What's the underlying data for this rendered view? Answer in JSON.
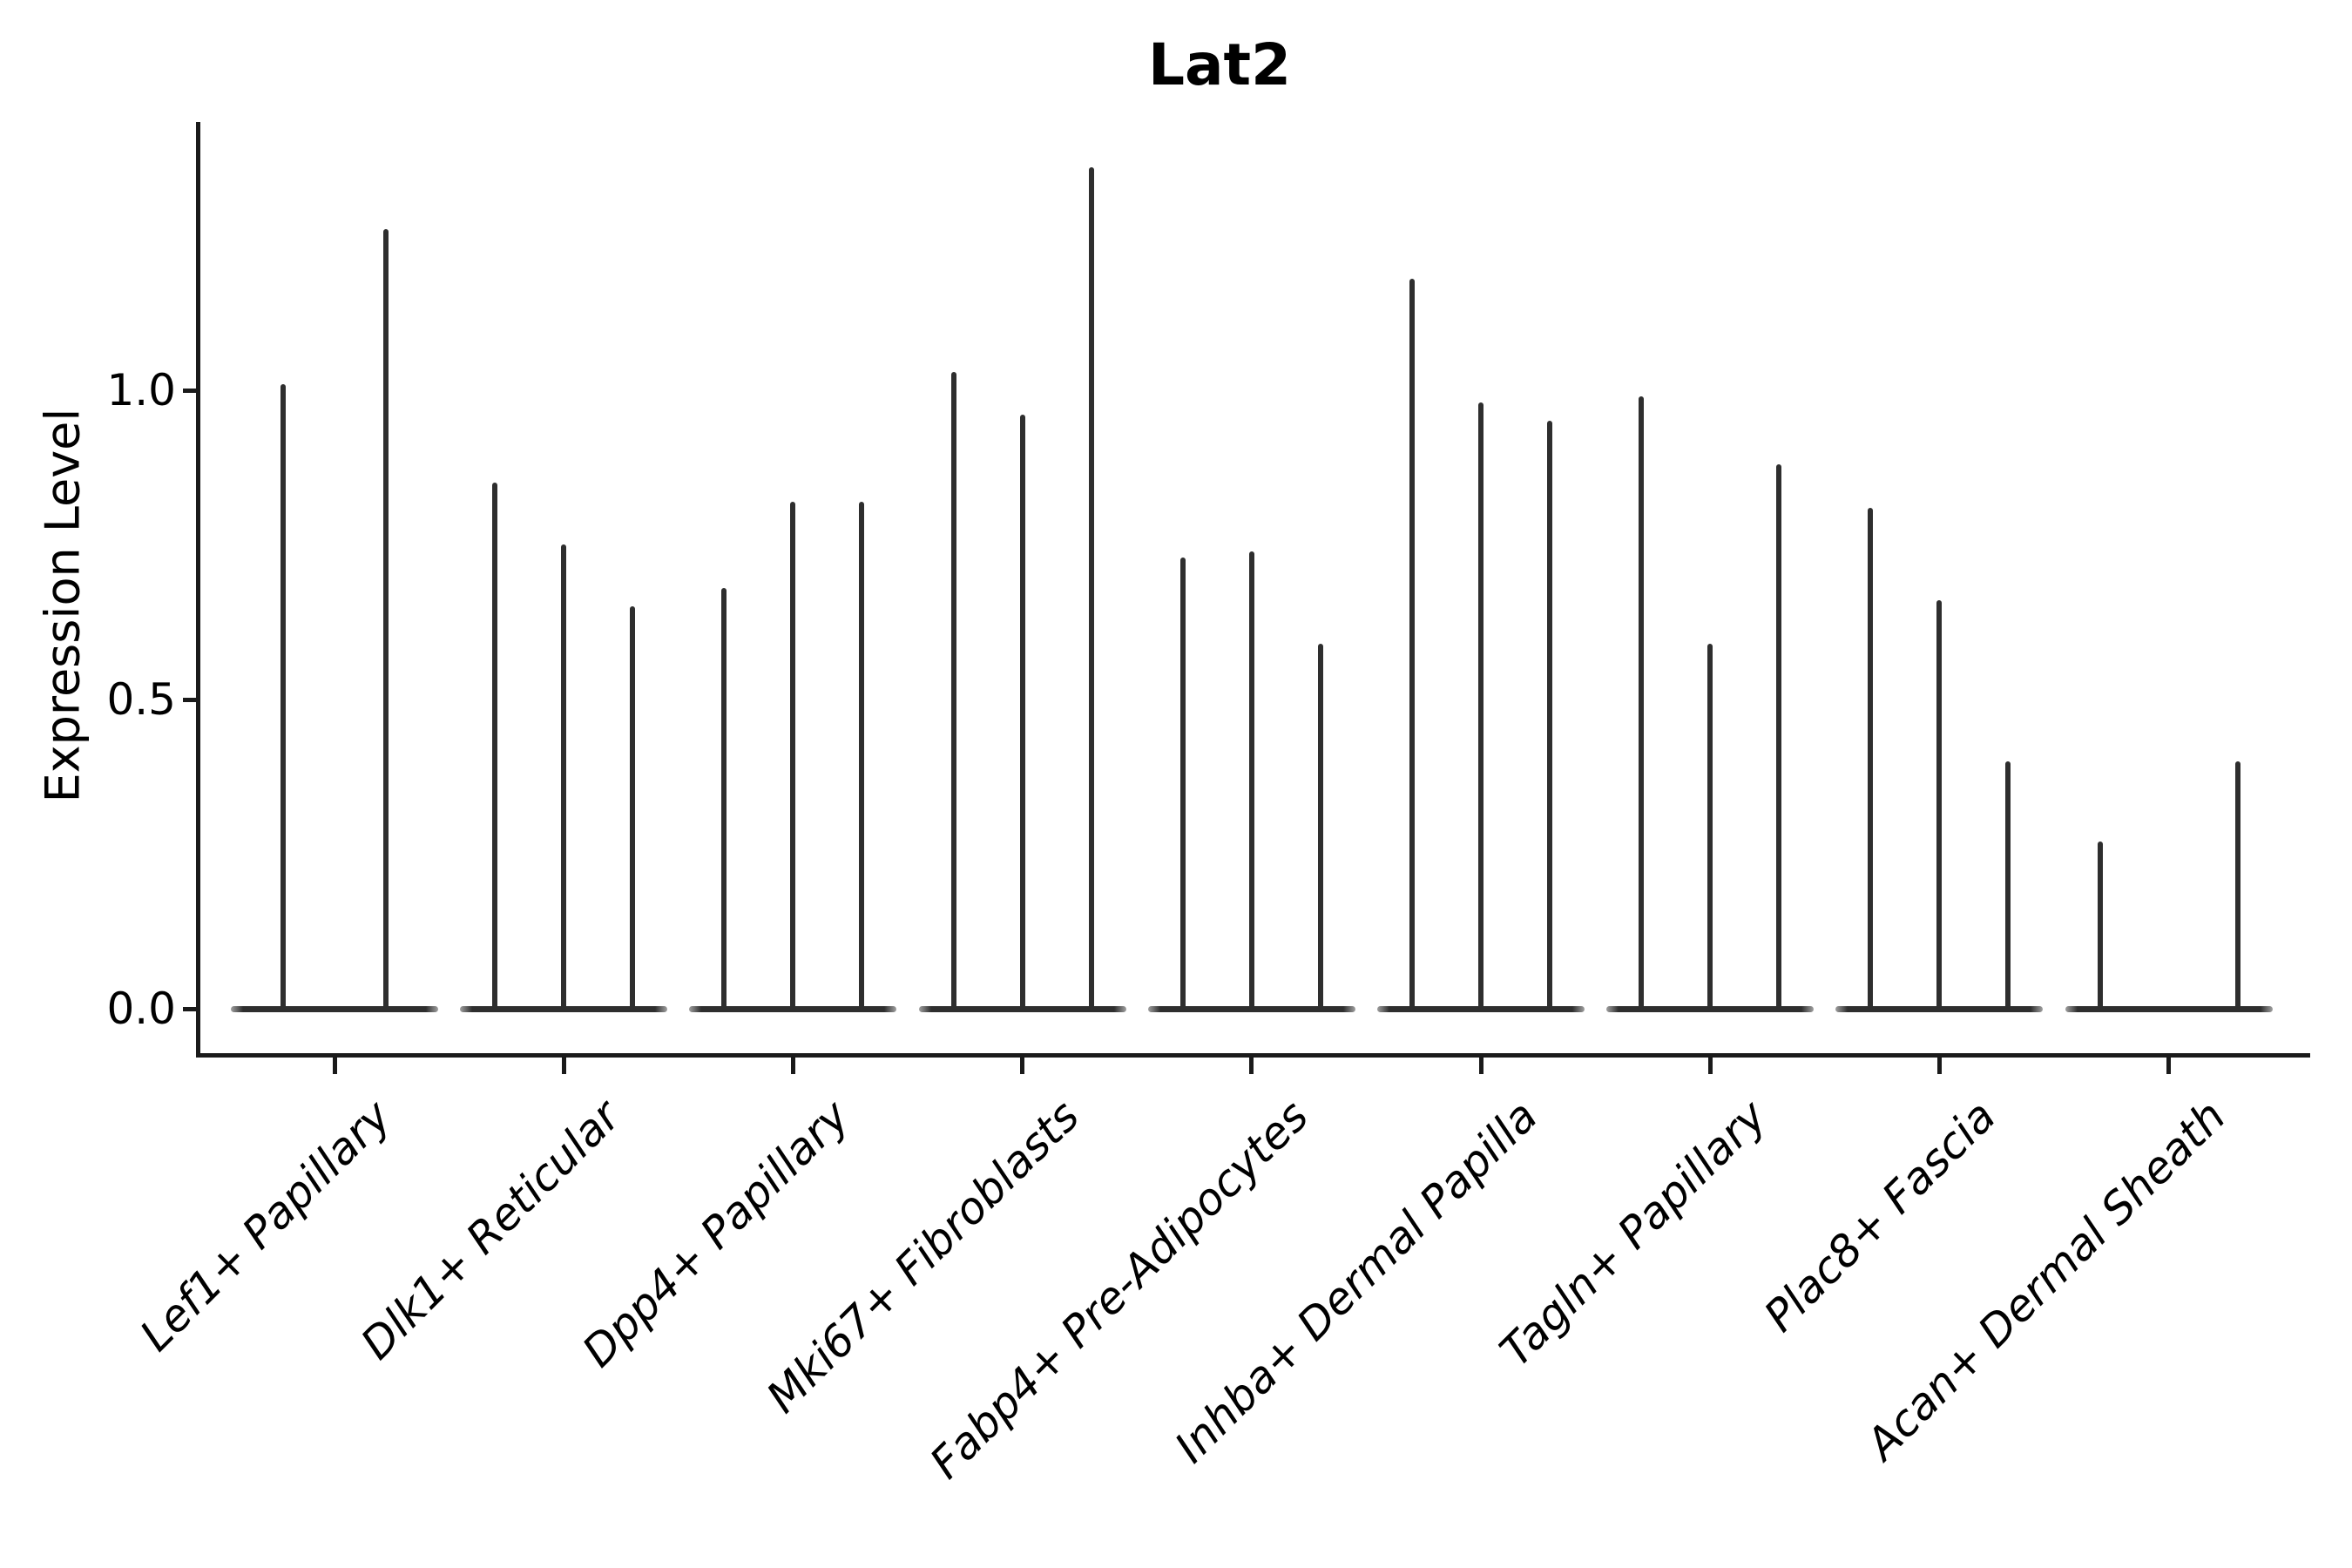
{
  "chart_data": {
    "type": "violin",
    "title": "Lat2",
    "ylabel": "Expression Level",
    "xlabel": "",
    "yticks": [
      0.0,
      0.5,
      1.0
    ],
    "ylim": [
      -0.08,
      1.43
    ],
    "grid": false,
    "legend": "none",
    "x_label_rotation_deg": 45,
    "categories": [
      "Lef1+ Papillary",
      "Dlk1+ Reticular",
      "Dpp4+ Papillary",
      "Mki67+ Fibroblasts",
      "Fabp4+ Pre-Adipocytes",
      "Inhba+ Dermal Papilla",
      "Tagln+ Papillary",
      "Plac8+ Fascia",
      "Acan+ Dermal Sheath"
    ],
    "groups": [
      {
        "category": "Lef1+ Papillary",
        "violins": [
          {
            "dx": -59,
            "max": 1.01
          },
          {
            "dx": 59,
            "max": 1.26
          }
        ]
      },
      {
        "category": "Dlk1+ Reticular",
        "violins": [
          {
            "dx": -79,
            "max": 0.85
          },
          {
            "dx": 0,
            "max": 0.75
          },
          {
            "dx": 79,
            "max": 0.65
          }
        ]
      },
      {
        "category": "Dpp4+ Papillary",
        "violins": [
          {
            "dx": -79,
            "max": 0.68
          },
          {
            "dx": 0,
            "max": 0.82
          },
          {
            "dx": 79,
            "max": 0.82
          }
        ]
      },
      {
        "category": "Mki67+ Fibroblasts",
        "violins": [
          {
            "dx": -79,
            "max": 1.03
          },
          {
            "dx": 0,
            "max": 0.96
          },
          {
            "dx": 79,
            "max": 1.36
          }
        ]
      },
      {
        "category": "Fabp4+ Pre-Adipocytes",
        "violins": [
          {
            "dx": -79,
            "max": 0.73
          },
          {
            "dx": 0,
            "max": 0.74
          },
          {
            "dx": 79,
            "max": 0.59
          }
        ]
      },
      {
        "category": "Inhba+ Dermal Papilla",
        "violins": [
          {
            "dx": -79,
            "max": 1.18
          },
          {
            "dx": 0,
            "max": 0.98
          },
          {
            "dx": 79,
            "max": 0.95
          }
        ]
      },
      {
        "category": "Tagln+ Papillary",
        "violins": [
          {
            "dx": -79,
            "max": 0.99
          },
          {
            "dx": 0,
            "max": 0.59
          },
          {
            "dx": 79,
            "max": 0.88
          }
        ]
      },
      {
        "category": "Plac8+ Fascia",
        "violins": [
          {
            "dx": -79,
            "max": 0.81
          },
          {
            "dx": 0,
            "max": 0.66
          },
          {
            "dx": 79,
            "max": 0.4
          }
        ]
      },
      {
        "category": "Acan+ Dermal Sheath",
        "violins": [
          {
            "dx": -79,
            "max": 0.27
          },
          {
            "dx": 0,
            "max": 0.0
          },
          {
            "dx": 79,
            "max": 0.4
          }
        ]
      }
    ],
    "colors": {
      "violin": "#2e2e2e",
      "axis": "#1a1a1a",
      "text": "#000000",
      "background": "#ffffff"
    }
  }
}
